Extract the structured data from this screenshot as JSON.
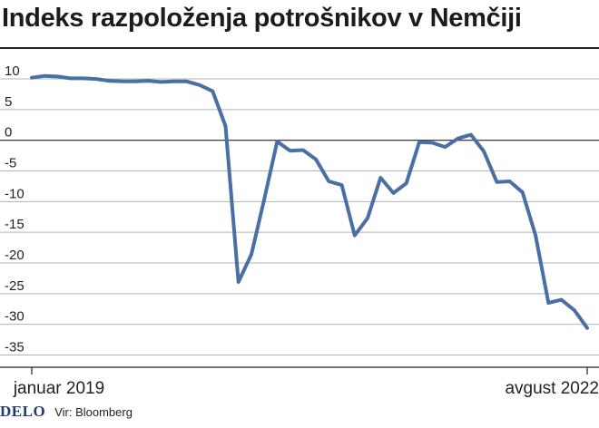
{
  "title": "Indeks razpoloženja potrošnikov v Nemčiji",
  "footer": {
    "brand": "DELO",
    "source": "Vir: Bloomberg"
  },
  "colors": {
    "line": "#4a6fa5",
    "grid": "#b3b3b3",
    "zero_line": "#222222"
  },
  "chart_data": {
    "type": "line",
    "title": "Indeks razpoloženja potrošnikov v Nemčiji",
    "xlabel": "",
    "ylabel": "",
    "x_tick_labels": [
      "januar 2019",
      "avgust 2022"
    ],
    "ylim": [
      -37,
      14
    ],
    "yticks": [
      10,
      5,
      0,
      -5,
      -10,
      -15,
      -20,
      -25,
      -30,
      -35
    ],
    "grid": "horizontal",
    "x": [
      "2019-01",
      "2019-02",
      "2019-03",
      "2019-04",
      "2019-05",
      "2019-06",
      "2019-07",
      "2019-08",
      "2019-09",
      "2019-10",
      "2019-11",
      "2019-12",
      "2020-01",
      "2020-02",
      "2020-03",
      "2020-04",
      "2020-05",
      "2020-06",
      "2020-07",
      "2020-08",
      "2020-09",
      "2020-10",
      "2020-11",
      "2020-12",
      "2021-01",
      "2021-02",
      "2021-03",
      "2021-04",
      "2021-05",
      "2021-06",
      "2021-07",
      "2021-08",
      "2021-09",
      "2021-10",
      "2021-11",
      "2021-12",
      "2022-01",
      "2022-02",
      "2022-03",
      "2022-04",
      "2022-05",
      "2022-06",
      "2022-07",
      "2022-08"
    ],
    "series": [
      {
        "values": [
          10.2,
          10.5,
          10.4,
          10.1,
          10.1,
          10.0,
          9.7,
          9.6,
          9.6,
          9.7,
          9.5,
          9.6,
          9.6,
          9.0,
          8.0,
          2.3,
          -23.1,
          -18.6,
          -9.6,
          -0.2,
          -1.7,
          -1.6,
          -3.1,
          -6.7,
          -7.3,
          -15.5,
          -12.7,
          -6.1,
          -8.6,
          -7.0,
          -0.3,
          -0.4,
          -1.1,
          0.3,
          0.9,
          -1.8,
          -6.8,
          -6.7,
          -8.5,
          -15.5,
          -26.5,
          -26.0,
          -27.7,
          -30.6
        ]
      }
    ]
  }
}
